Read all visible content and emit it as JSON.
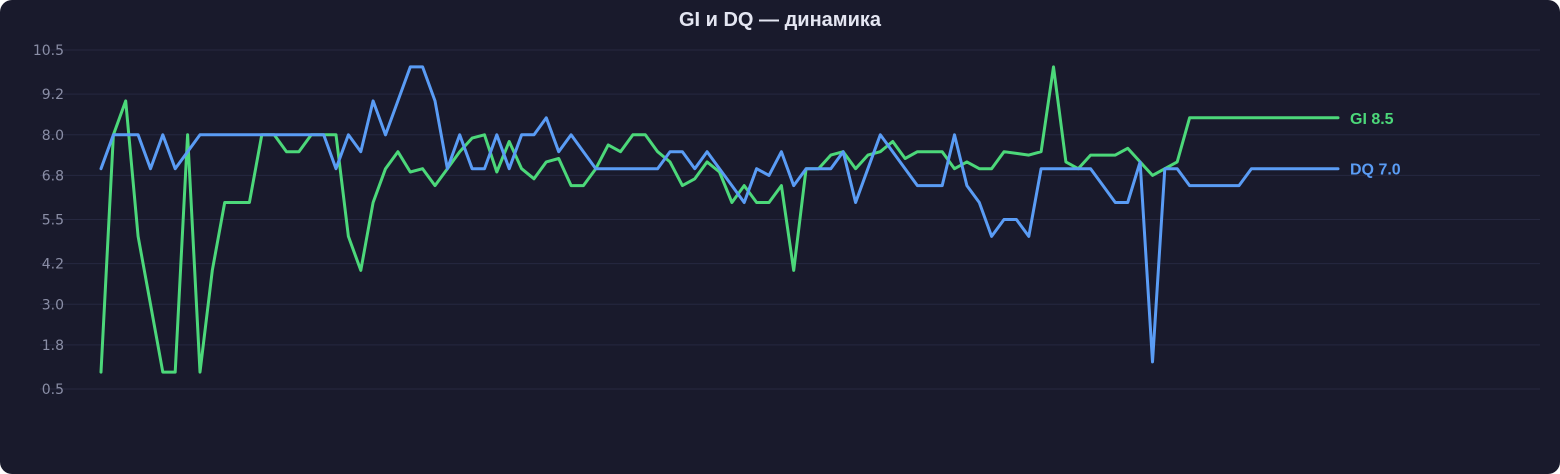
{
  "chart_data": {
    "type": "line",
    "title": "GI и DQ — динамика",
    "xlabel": "",
    "ylabel": "",
    "ylim": [
      0.5,
      10.5
    ],
    "yticks": [
      "10.5",
      "9.2",
      "8.0",
      "6.8",
      "5.5",
      "4.2",
      "3.0",
      "1.8",
      "0.5"
    ],
    "grid": true,
    "legend": "inline-end-labels",
    "series": [
      {
        "name": "GI",
        "end_label": "GI 8.5",
        "color": "#4cd87a",
        "x": [
          0,
          1,
          2,
          3,
          4,
          5,
          6,
          7,
          8,
          9,
          10,
          11,
          12,
          13,
          14,
          15,
          16,
          17,
          18,
          19,
          20,
          21,
          22,
          23,
          24,
          25,
          26,
          27,
          28,
          29,
          30,
          31,
          32,
          33,
          34,
          35,
          36,
          37,
          38,
          39,
          40,
          41,
          42,
          43,
          44,
          45,
          46,
          47,
          48,
          49,
          50,
          51,
          52,
          53,
          54,
          55,
          56,
          57,
          58,
          59,
          60,
          61,
          62,
          63,
          64,
          65,
          66,
          67,
          68,
          69,
          70,
          71,
          72,
          73,
          74,
          75,
          76,
          77,
          78,
          79,
          80,
          81,
          82,
          83,
          84,
          85,
          86,
          87,
          88,
          89,
          90,
          91,
          92,
          93,
          94,
          95,
          96,
          97,
          98,
          99,
          100
        ],
        "values": [
          1.0,
          8.0,
          9.0,
          5.0,
          3.0,
          1.0,
          1.0,
          8.0,
          1.0,
          4.0,
          6.0,
          6.0,
          6.0,
          8.0,
          8.0,
          7.5,
          7.5,
          8.0,
          8.0,
          8.0,
          5.0,
          4.0,
          6.0,
          7.0,
          7.5,
          6.9,
          7.0,
          6.5,
          7.0,
          7.5,
          7.9,
          8.0,
          6.9,
          7.8,
          7.0,
          6.7,
          7.2,
          7.3,
          6.5,
          6.5,
          7.0,
          7.7,
          7.5,
          8.0,
          8.0,
          7.5,
          7.2,
          6.5,
          6.7,
          7.2,
          6.9,
          6.0,
          6.5,
          6.0,
          6.0,
          6.5,
          4.0,
          7.0,
          7.0,
          7.4,
          7.5,
          7.0,
          7.4,
          7.5,
          7.8,
          7.3,
          7.5,
          7.5,
          7.5,
          7.0,
          7.2,
          7.0,
          7.0,
          7.5,
          7.45,
          7.4,
          7.5,
          10.0,
          7.2,
          7.0,
          7.4,
          7.4,
          7.4,
          7.6,
          7.2,
          6.8,
          7.0,
          7.2,
          8.5,
          8.5,
          8.5,
          8.5,
          8.5,
          8.5,
          8.5,
          8.5,
          8.5,
          8.5,
          8.5,
          8.5,
          8.5
        ]
      },
      {
        "name": "DQ",
        "end_label": "DQ 7.0",
        "color": "#5a9cf5",
        "x": [
          0,
          1,
          2,
          3,
          4,
          5,
          6,
          7,
          8,
          9,
          10,
          11,
          12,
          13,
          14,
          15,
          16,
          17,
          18,
          19,
          20,
          21,
          22,
          23,
          24,
          25,
          26,
          27,
          28,
          29,
          30,
          31,
          32,
          33,
          34,
          35,
          36,
          37,
          38,
          39,
          40,
          41,
          42,
          43,
          44,
          45,
          46,
          47,
          48,
          49,
          50,
          51,
          52,
          53,
          54,
          55,
          56,
          57,
          58,
          59,
          60,
          61,
          62,
          63,
          64,
          65,
          66,
          67,
          68,
          69,
          70,
          71,
          72,
          73,
          74,
          75,
          76,
          77,
          78,
          79,
          80,
          81,
          82,
          83,
          84,
          85,
          86,
          87,
          88,
          89,
          90,
          91,
          92,
          93,
          94,
          95,
          96,
          97,
          98,
          99,
          100
        ],
        "values": [
          7.0,
          8.0,
          8.0,
          8.0,
          7.0,
          8.0,
          7.0,
          7.5,
          8.0,
          8.0,
          8.0,
          8.0,
          8.0,
          8.0,
          8.0,
          8.0,
          8.0,
          8.0,
          8.0,
          7.0,
          8.0,
          7.5,
          9.0,
          8.0,
          9.0,
          10.0,
          10.0,
          9.0,
          7.0,
          8.0,
          7.0,
          7.0,
          8.0,
          7.0,
          8.0,
          8.0,
          8.5,
          7.5,
          8.0,
          7.5,
          7.0,
          7.0,
          7.0,
          7.0,
          7.0,
          7.0,
          7.5,
          7.5,
          7.0,
          7.5,
          7.0,
          6.5,
          6.0,
          7.0,
          6.8,
          7.5,
          6.5,
          7.0,
          7.0,
          7.0,
          7.5,
          6.0,
          7.0,
          8.0,
          7.5,
          7.0,
          6.5,
          6.5,
          6.5,
          8.0,
          6.5,
          6.0,
          5.0,
          5.5,
          5.5,
          5.0,
          7.0,
          7.0,
          7.0,
          7.0,
          7.0,
          6.5,
          6.0,
          6.0,
          7.2,
          1.3,
          7.0,
          7.0,
          6.5,
          6.5,
          6.5,
          6.5,
          6.5,
          7.0,
          7.0,
          7.0,
          7.0,
          7.0,
          7.0,
          7.0,
          7.0
        ]
      }
    ]
  }
}
